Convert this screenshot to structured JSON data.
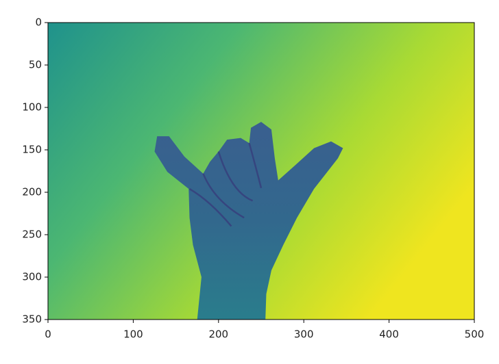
{
  "chart_data": {
    "type": "image",
    "xlim": [
      0,
      500
    ],
    "ylim": [
      350,
      0
    ],
    "xticks": [
      0,
      100,
      200,
      300,
      400,
      500
    ],
    "yticks": [
      0,
      50,
      100,
      150,
      200,
      250,
      300,
      350
    ]
  }
}
